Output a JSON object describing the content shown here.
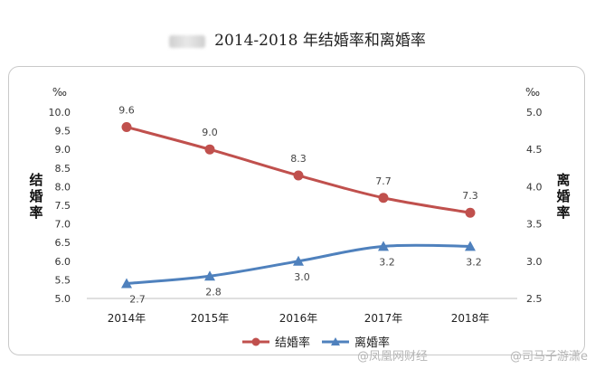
{
  "chart_data": {
    "type": "line",
    "title": "2014-2018 年结婚率和离婚率",
    "categories": [
      "2014年",
      "2015年",
      "2016年",
      "2017年",
      "2018年"
    ],
    "y_left": {
      "label": "结婚率",
      "unit": "‰",
      "ylim": [
        5.0,
        10.0
      ],
      "ticks": [
        "5.0",
        "5.5",
        "6.0",
        "6.5",
        "7.0",
        "7.5",
        "8.0",
        "8.5",
        "9.0",
        "9.5",
        "10.0"
      ]
    },
    "y_right": {
      "label": "离婚率",
      "unit": "‰",
      "ylim": [
        2.5,
        5.0
      ],
      "ticks": [
        "2.5",
        "3.0",
        "3.5",
        "4.0",
        "4.5",
        "5.0"
      ]
    },
    "series": [
      {
        "name": "结婚率",
        "axis": "left",
        "color": "#c0504d",
        "marker": "circle",
        "values": [
          9.6,
          9.0,
          8.3,
          7.7,
          7.3
        ],
        "labels": [
          "9.6",
          "9.0",
          "8.3",
          "7.7",
          "7.3"
        ]
      },
      {
        "name": "离婚率",
        "axis": "right",
        "color": "#4f81bd",
        "marker": "triangle",
        "values": [
          2.7,
          2.8,
          3.0,
          3.2,
          3.2
        ],
        "labels": [
          "2.7",
          "2.8",
          "3.0",
          "3.2",
          "3.2"
        ]
      }
    ],
    "grid": false,
    "legend": "bottom"
  },
  "watermark": {
    "left": "@凤凰网财经",
    "right": "@司马子游潇e"
  }
}
